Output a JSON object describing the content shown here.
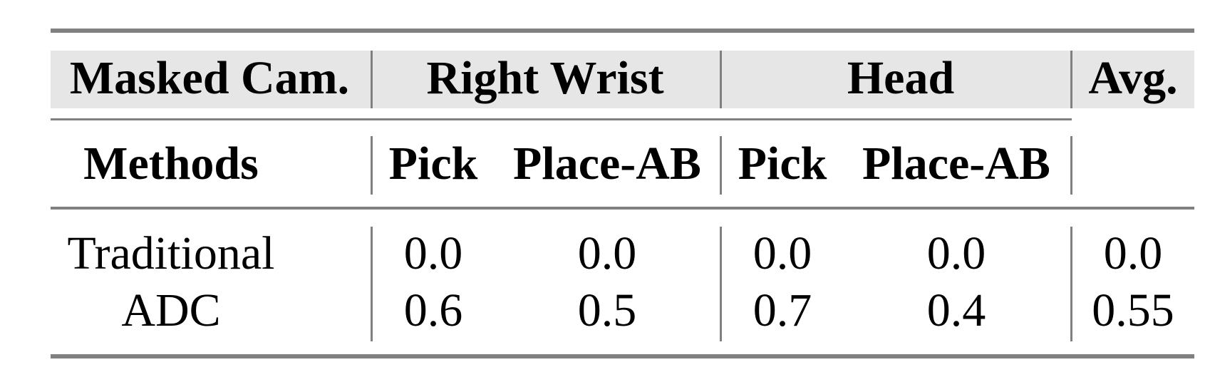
{
  "table": {
    "header_row1": {
      "masked_cam": "Masked Cam.",
      "right_wrist": "Right Wrist",
      "head": "Head",
      "avg": "Avg."
    },
    "header_row2": {
      "methods": "Methods",
      "rw_pick": "Pick",
      "rw_place": "Place-AB",
      "head_pick": "Pick",
      "head_place": "Place-AB"
    },
    "rows": [
      {
        "method": "Traditional",
        "values": [
          "0.0",
          "0.0",
          "0.0",
          "0.0",
          "0.0"
        ]
      },
      {
        "method": "ADC",
        "values": [
          "0.6",
          "0.5",
          "0.7",
          "0.4",
          "0.55"
        ]
      }
    ],
    "colors": {
      "header_band": "#e6e6e6",
      "rules": "#808080"
    }
  }
}
